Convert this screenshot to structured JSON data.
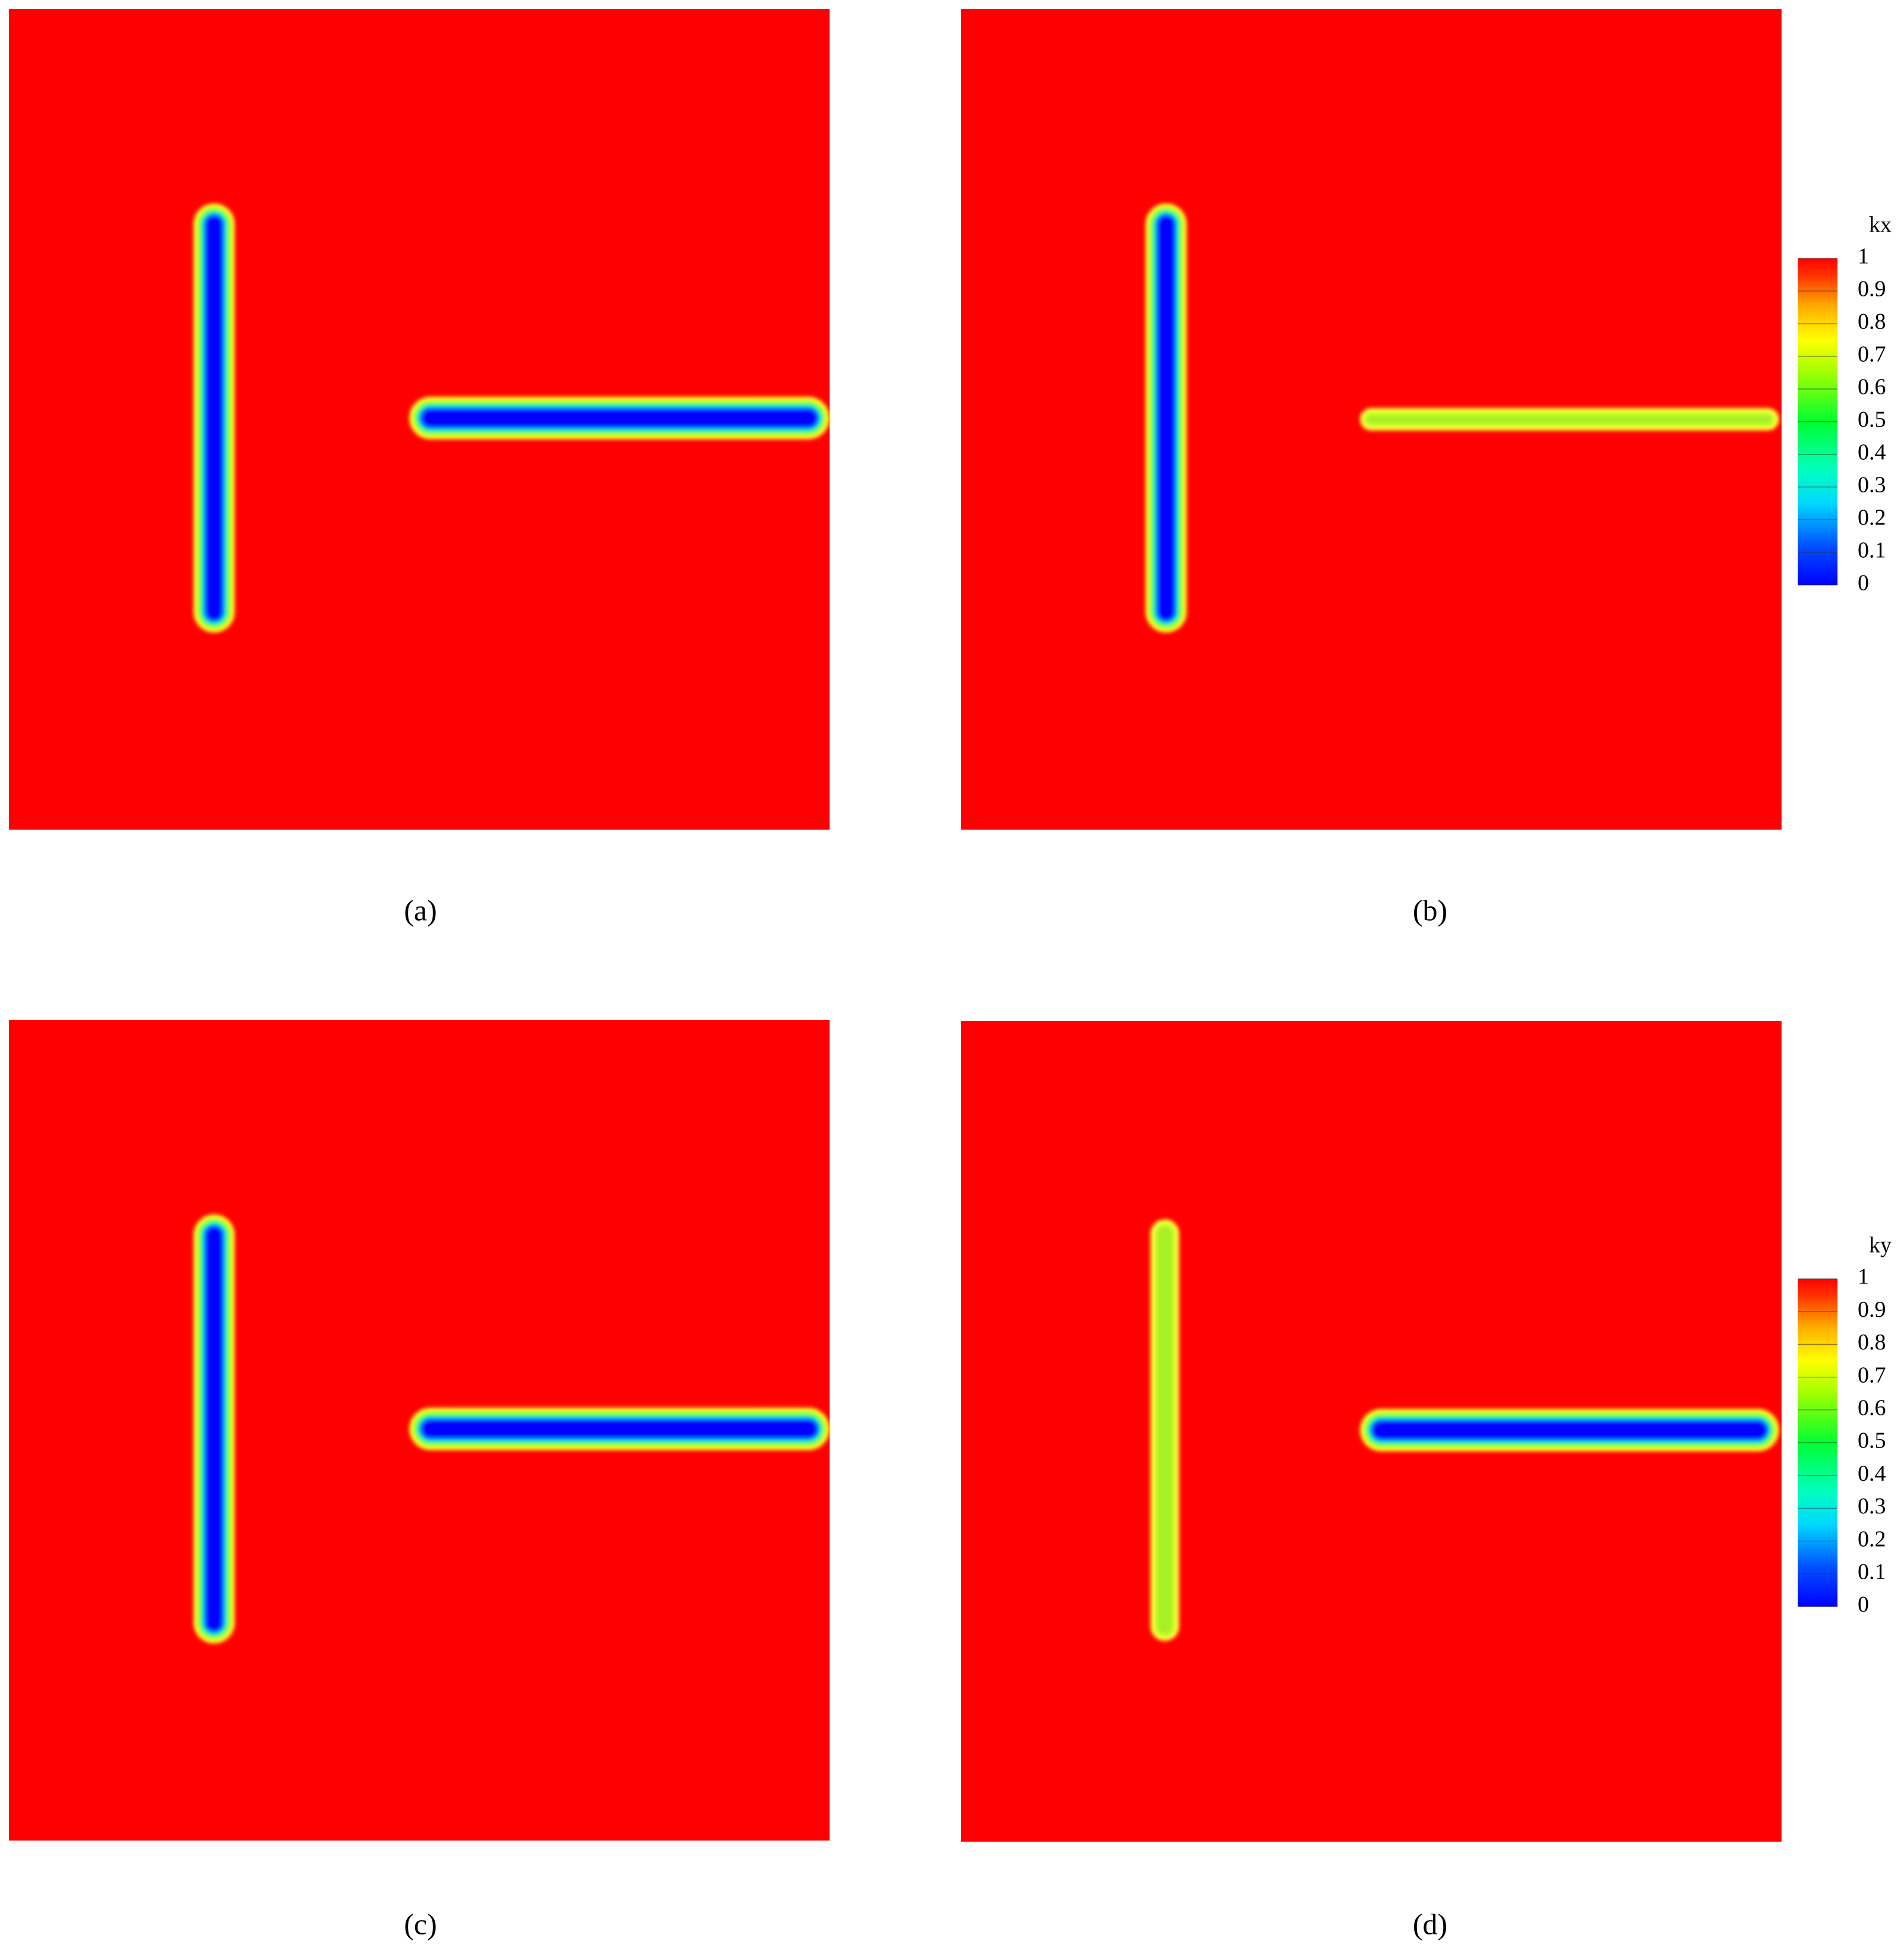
{
  "panels": [
    {
      "label": "(a)"
    },
    {
      "label": "(b)"
    },
    {
      "label": "(c)"
    },
    {
      "label": "(d)"
    }
  ],
  "colorbars": [
    {
      "title": "kx",
      "range": [
        0,
        1
      ],
      "ticks": [
        0,
        0.1,
        0.2,
        0.3,
        0.4,
        0.5,
        0.6,
        0.7,
        0.8,
        0.9,
        1
      ]
    },
    {
      "title": "ky",
      "range": [
        0,
        1
      ],
      "ticks": [
        0,
        0.1,
        0.2,
        0.3,
        0.4,
        0.5,
        0.6,
        0.7,
        0.8,
        0.9,
        1
      ]
    }
  ]
}
